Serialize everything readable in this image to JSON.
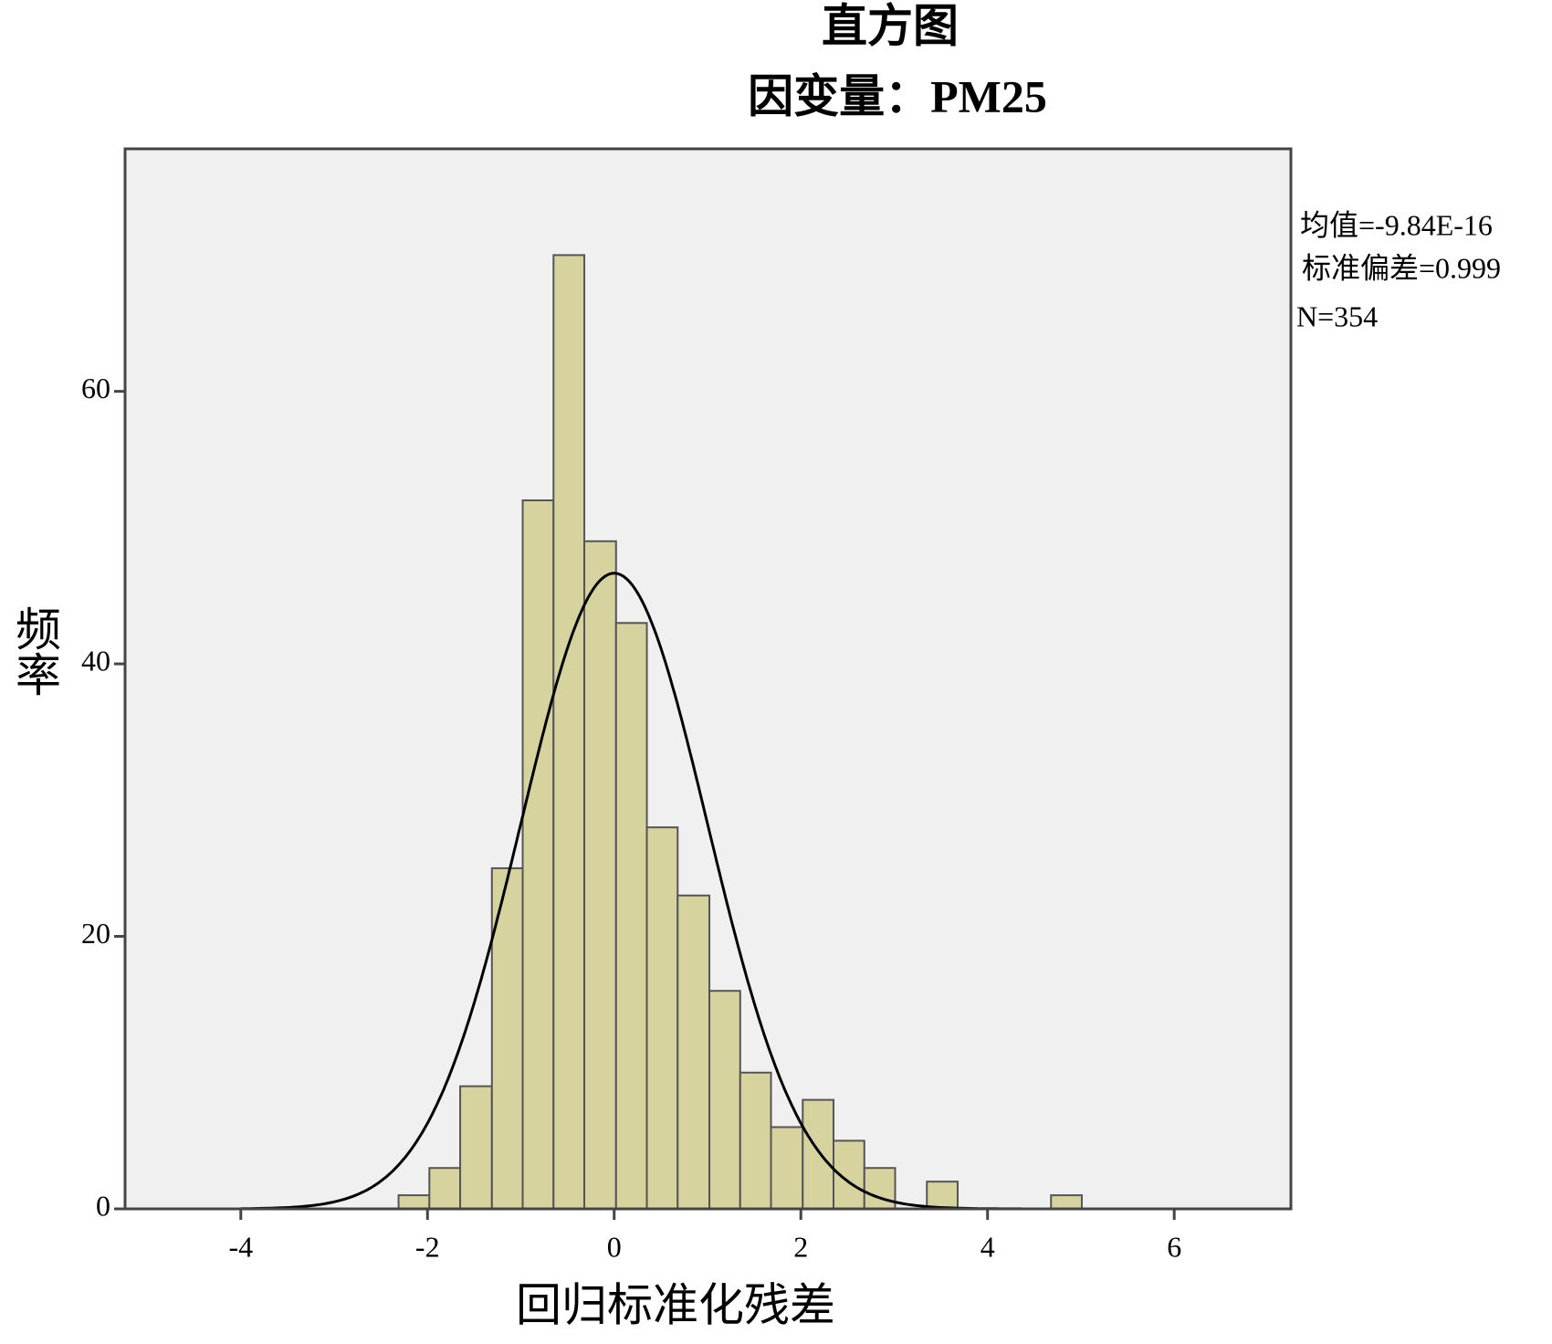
{
  "chart_data": {
    "type": "histogram",
    "title": "直方图",
    "subtitle": "因变量：PM25",
    "x_label": "回归标准化残差",
    "y_label": "频率",
    "bins": [
      -2.31,
      -1.98,
      -1.65,
      -1.31,
      -0.98,
      -0.65,
      -0.32,
      0.02,
      0.35,
      0.68,
      1.02,
      1.35,
      1.68,
      2.02,
      2.35,
      2.68,
      3.01,
      3.35,
      3.68,
      4.01,
      4.35,
      4.68,
      5.01
    ],
    "values": [
      1,
      3,
      9,
      25,
      52,
      70,
      49,
      43,
      28,
      23,
      16,
      10,
      6,
      8,
      5,
      3,
      0,
      2,
      0,
      0,
      0,
      1
    ],
    "color": "#d6d39e",
    "edge_color": "#555555",
    "curve_color": "#000000",
    "xlim": [
      -5.24,
      7.25
    ],
    "ylim": [
      0,
      77.8
    ],
    "xticks": [
      -4,
      -2,
      0,
      2,
      4,
      6
    ],
    "yticks": [
      0,
      20,
      40,
      60
    ],
    "stats": [
      {
        "value": -9.84e-16,
        "label": "均值=-9.84E-16"
      },
      {
        "value": 0.999,
        "label": "标准偏差=0.999"
      },
      {
        "value": 354,
        "label": "N=354"
      }
    ]
  }
}
